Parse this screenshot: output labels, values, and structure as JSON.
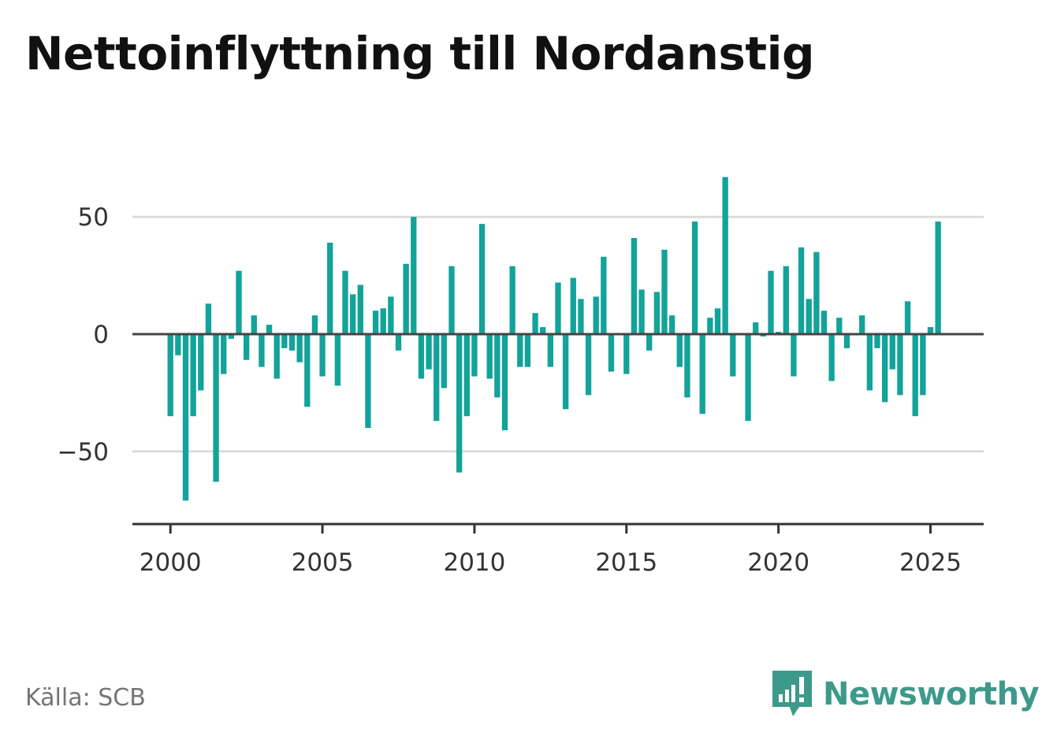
{
  "chart_data": {
    "type": "bar",
    "title": "Nettoinflyttning till Nordanstig",
    "xlabel": "",
    "ylabel": "",
    "x_ticks": [
      "2000",
      "2005",
      "2010",
      "2015",
      "2020",
      "2025"
    ],
    "y_ticks": [
      "50",
      "0",
      "−50"
    ],
    "xlim": [
      1998.75,
      2026.75
    ],
    "ylim": [
      -81,
      82
    ],
    "grid": true,
    "bar_color": "#12a39a",
    "start": [
      2000,
      1
    ],
    "values": [
      -35,
      -9,
      -71,
      -35,
      -24,
      13,
      -63,
      -17,
      -2,
      27,
      -11,
      8,
      -14,
      4,
      -19,
      -6,
      -7,
      -12,
      -31,
      8,
      -18,
      39,
      -22,
      27,
      17,
      21,
      -40,
      10,
      11,
      16,
      -7,
      30,
      50,
      -19,
      -15,
      -37,
      -23,
      29,
      -59,
      -35,
      -18,
      47,
      -19,
      -27,
      -41,
      29,
      -14,
      -14,
      9,
      3,
      -14,
      22,
      -32,
      24,
      15,
      -26,
      16,
      33,
      -16,
      0,
      -17,
      41,
      19,
      -7,
      18,
      36,
      8,
      -14,
      -27,
      48,
      -34,
      7,
      11,
      67,
      -18,
      0,
      -37,
      5,
      -1,
      27,
      1,
      29,
      -18,
      37,
      15,
      35,
      10,
      -20,
      7,
      -6,
      0,
      8,
      -24,
      -6,
      -29,
      -15,
      -26,
      14,
      -35,
      -26,
      3,
      48
    ]
  },
  "source": "Källa: SCB",
  "brand": {
    "name": "Newsworthy",
    "color": "#3d9a8b"
  }
}
